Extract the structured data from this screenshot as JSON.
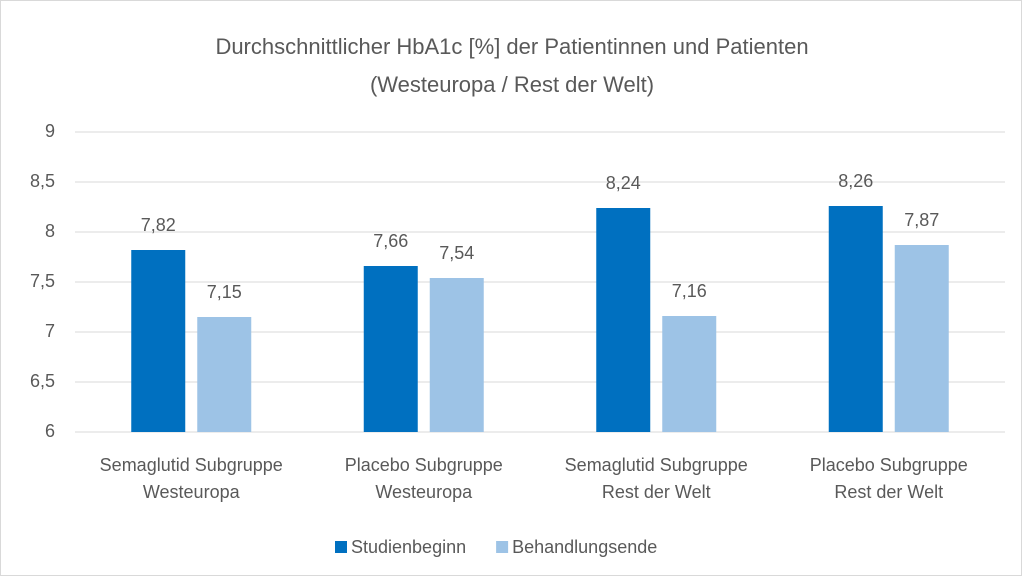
{
  "chart_data": {
    "type": "bar",
    "title": [
      "Durchschnittlicher HbA1c [%] der Patientinnen und Patienten",
      "(Westeuropa / Rest der Welt)"
    ],
    "categories": [
      [
        "Semaglutid Subgruppe",
        "Westeuropa"
      ],
      [
        "Placebo Subgruppe",
        "Westeuropa"
      ],
      [
        "Semaglutid Subgruppe",
        "Rest der Welt"
      ],
      [
        "Placebo Subgruppe",
        "Rest der Welt"
      ]
    ],
    "series": [
      {
        "name": "Studienbeginn",
        "color": "#0070c0",
        "values": [
          7.82,
          7.66,
          8.24,
          8.26
        ],
        "value_labels": [
          "7,82",
          "7,66",
          "8,24",
          "8,26"
        ]
      },
      {
        "name": "Behandlungsende",
        "color": "#9dc3e6",
        "values": [
          7.15,
          7.54,
          7.16,
          7.87
        ],
        "value_labels": [
          "7,15",
          "7,54",
          "7,16",
          "7,87"
        ]
      }
    ],
    "ylim": [
      6,
      9
    ],
    "yticks": [
      6,
      {
        "value": 6.5,
        "label": "6,5"
      },
      7,
      {
        "value": 7.5,
        "label": "7,5"
      },
      8,
      {
        "value": 8.5,
        "label": "8,5"
      },
      9
    ],
    "grid": true,
    "legend": "bottom"
  }
}
